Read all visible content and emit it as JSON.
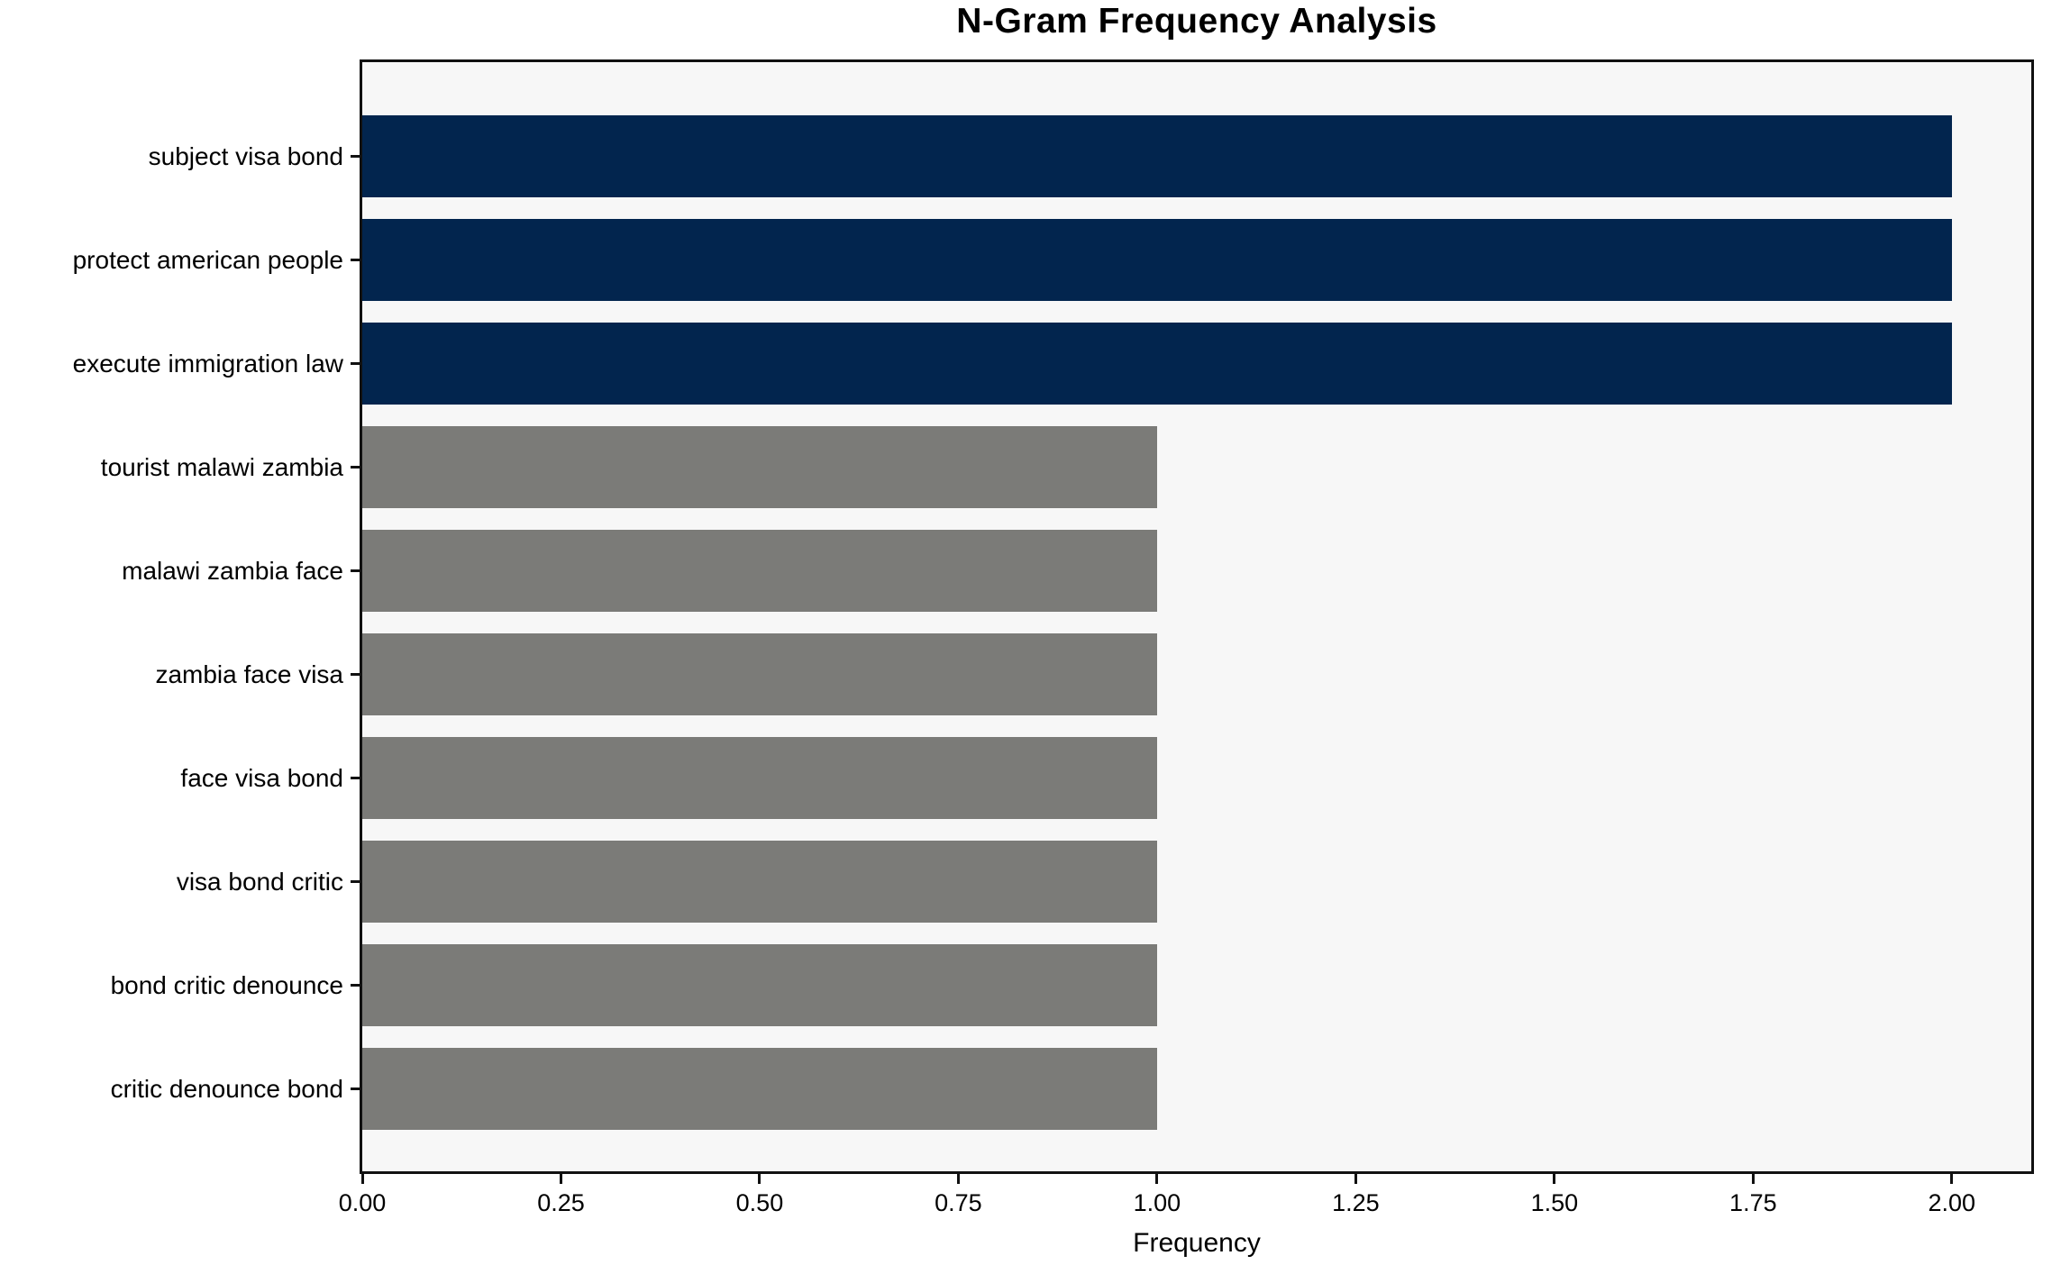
{
  "chart_data": {
    "type": "bar",
    "orientation": "horizontal",
    "title": "N-Gram Frequency Analysis",
    "xlabel": "Frequency",
    "ylabel": "",
    "categories": [
      "subject visa bond",
      "protect american people",
      "execute immigration law",
      "tourist malawi zambia",
      "malawi zambia face",
      "zambia face visa",
      "face visa bond",
      "visa bond critic",
      "bond critic denounce",
      "critic denounce bond"
    ],
    "values": [
      2,
      2,
      2,
      1,
      1,
      1,
      1,
      1,
      1,
      1
    ],
    "bar_colors": [
      "#02254e",
      "#02254e",
      "#02254e",
      "#7b7b78",
      "#7b7b78",
      "#7b7b78",
      "#7b7b78",
      "#7b7b78",
      "#7b7b78",
      "#7b7b78"
    ],
    "x_ticks": [
      "0.00",
      "0.25",
      "0.50",
      "0.75",
      "1.00",
      "1.25",
      "1.50",
      "1.75",
      "2.00"
    ],
    "x_tick_values": [
      0,
      0.25,
      0.5,
      0.75,
      1.0,
      1.25,
      1.5,
      1.75,
      2.0
    ],
    "xlim": [
      0,
      2.1
    ],
    "grid": false,
    "legend": null,
    "colors": {
      "highlight_bar": "#02254e",
      "normal_bar": "#7b7b78",
      "plot_background": "#f7f7f7",
      "figure_background": "#ffffff",
      "spine": "#111111",
      "text": "#000000"
    }
  }
}
